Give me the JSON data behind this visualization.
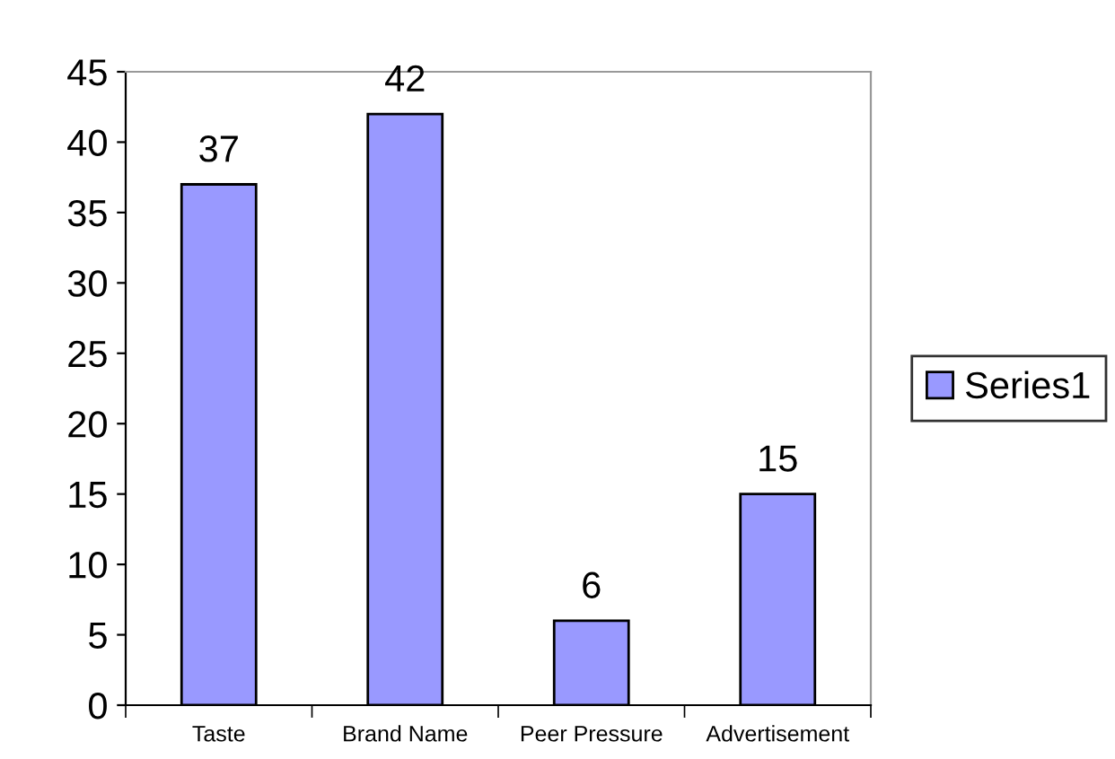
{
  "chart_data": {
    "type": "bar",
    "categories": [
      "Taste",
      "Brand Name",
      "Peer Pressure",
      "Advertisement"
    ],
    "series": [
      {
        "name": "Series1",
        "color": "#9999ff",
        "values": [
          37,
          42,
          6,
          15
        ]
      }
    ],
    "ylim": [
      0,
      45
    ],
    "yticks": [
      0,
      5,
      10,
      15,
      20,
      25,
      30,
      35,
      40,
      45
    ],
    "data_labels": true,
    "legend": "right",
    "grid": false
  }
}
